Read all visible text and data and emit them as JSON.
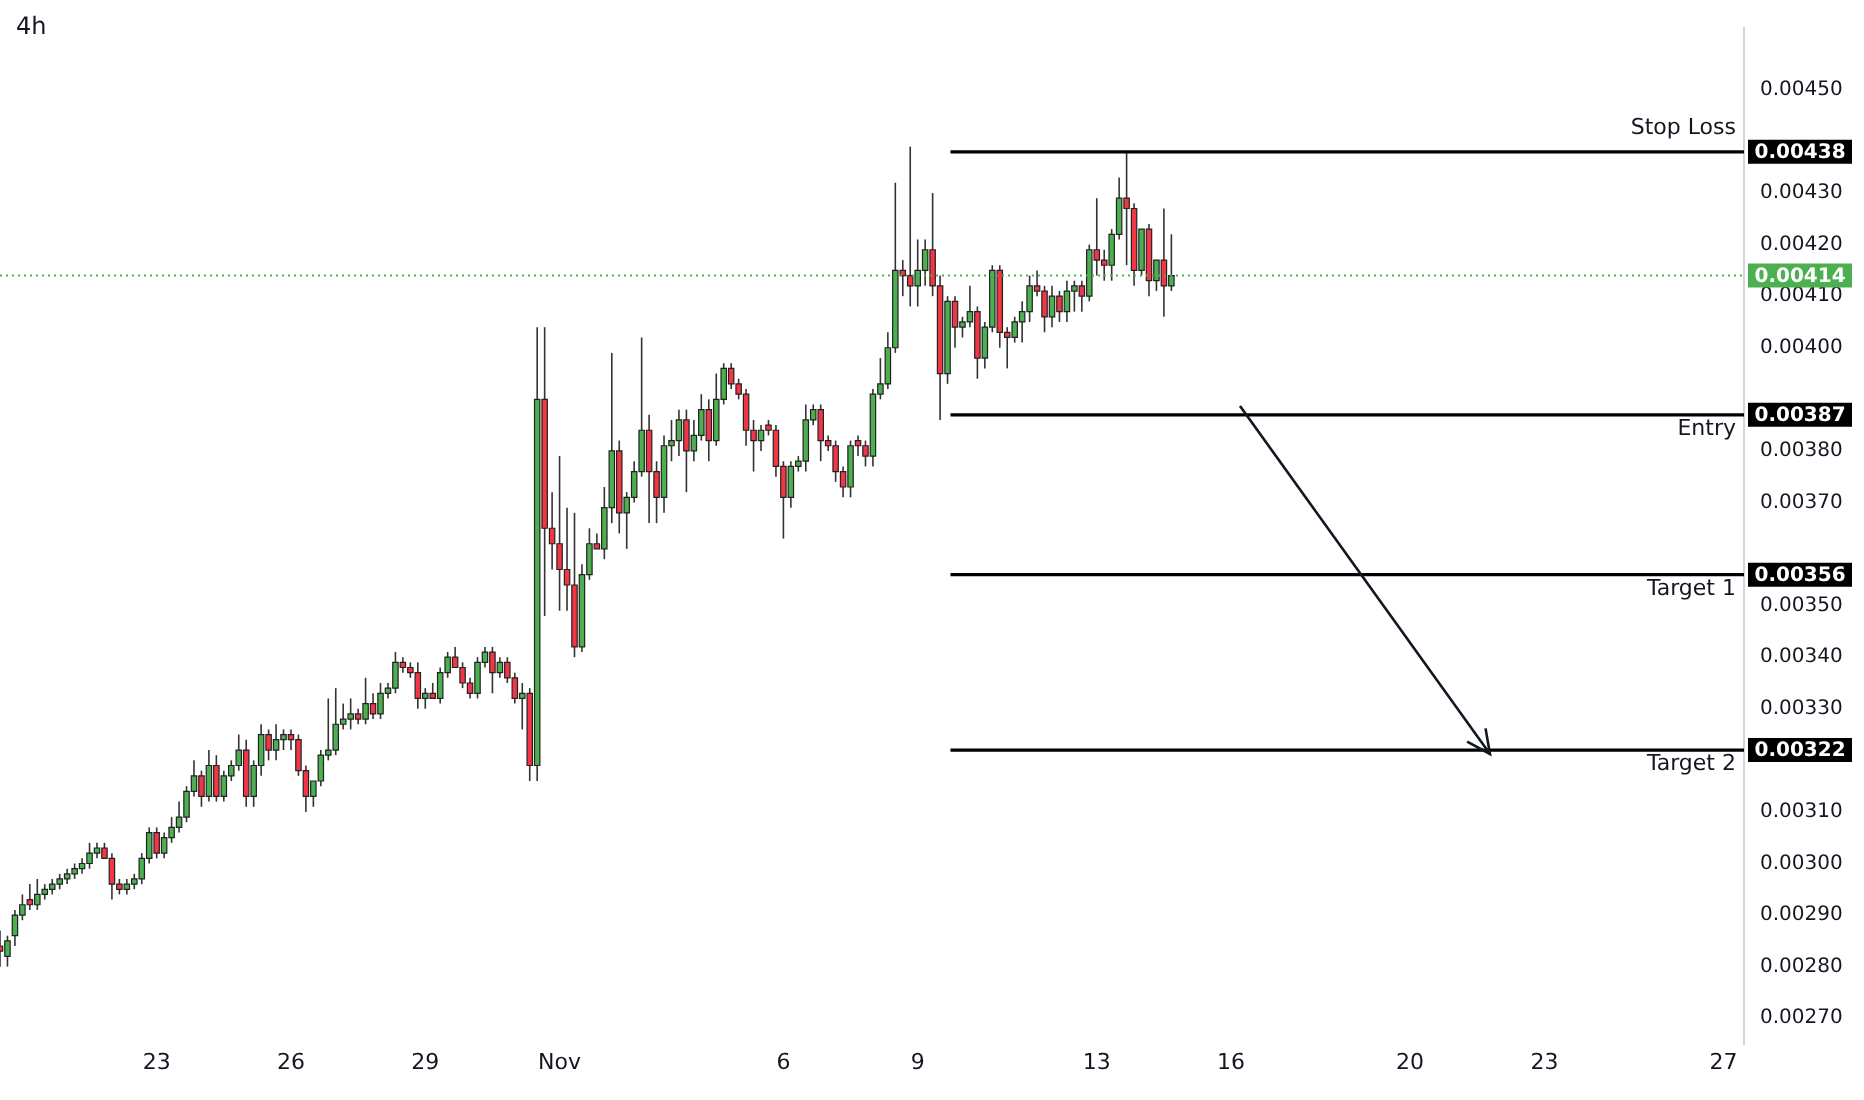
{
  "chart_data": {
    "type": "candlestick",
    "title": "4h",
    "x": [
      "--10-19T12:00",
      "--10-19T16:00",
      "--10-19T20:00",
      "--10-20T00:00",
      "--10-20T04:00",
      "--10-20T08:00",
      "--10-20T12:00",
      "--10-20T16:00",
      "--10-20T20:00",
      "--10-21T00:00",
      "--10-21T04:00",
      "--10-21T08:00",
      "--10-21T12:00",
      "--10-21T16:00",
      "--10-21T20:00",
      "--10-22T00:00",
      "--10-22T04:00",
      "--10-22T08:00",
      "--10-22T12:00",
      "--10-22T16:00",
      "--10-22T20:00",
      "--10-23T00:00",
      "--10-23T04:00",
      "--10-23T08:00",
      "--10-23T12:00",
      "--10-23T16:00",
      "--10-23T20:00",
      "--10-24T00:00",
      "--10-24T04:00",
      "--10-24T08:00",
      "--10-24T12:00",
      "--10-24T16:00",
      "--10-24T20:00",
      "--10-25T00:00",
      "--10-25T04:00",
      "--10-25T08:00",
      "--10-25T12:00",
      "--10-25T16:00",
      "--10-25T20:00",
      "--10-26T00:00",
      "--10-26T04:00",
      "--10-26T08:00",
      "--10-26T12:00",
      "--10-26T16:00",
      "--10-26T20:00",
      "--10-27T00:00",
      "--10-27T04:00",
      "--10-27T08:00",
      "--10-27T12:00",
      "--10-27T16:00",
      "--10-27T20:00",
      "--10-28T00:00",
      "--10-28T04:00",
      "--10-28T08:00",
      "--10-28T12:00",
      "--10-28T16:00",
      "--10-28T20:00",
      "--10-29T00:00",
      "--10-29T04:00",
      "--10-29T08:00",
      "--10-29T12:00",
      "--10-29T16:00",
      "--10-29T20:00",
      "--10-30T00:00",
      "--10-30T04:00",
      "--10-30T08:00",
      "--10-30T12:00",
      "--10-30T16:00",
      "--10-30T20:00",
      "--10-31T00:00",
      "--10-31T04:00",
      "--10-31T08:00",
      "--10-31T12:00",
      "--10-31T16:00",
      "--10-31T20:00",
      "--11-01T00:00",
      "--11-01T04:00",
      "--11-01T08:00",
      "--11-01T12:00",
      "--11-01T16:00",
      "--11-01T20:00",
      "--11-02T00:00",
      "--11-02T04:00",
      "--11-02T08:00",
      "--11-02T12:00",
      "--11-02T16:00",
      "--11-02T20:00",
      "--11-03T00:00",
      "--11-03T04:00",
      "--11-03T08:00",
      "--11-03T12:00",
      "--11-03T16:00",
      "--11-03T20:00",
      "--11-04T00:00",
      "--11-04T04:00",
      "--11-04T08:00",
      "--11-04T12:00",
      "--11-04T16:00",
      "--11-04T20:00",
      "--11-05T00:00",
      "--11-05T04:00",
      "--11-05T08:00",
      "--11-05T12:00",
      "--11-05T16:00",
      "--11-05T20:00",
      "--11-06T00:00",
      "--11-06T04:00",
      "--11-06T08:00",
      "--11-06T12:00",
      "--11-06T16:00",
      "--11-06T20:00",
      "--11-07T00:00",
      "--11-07T04:00",
      "--11-07T08:00",
      "--11-07T12:00",
      "--11-07T16:00",
      "--11-07T20:00",
      "--11-08T00:00",
      "--11-08T04:00",
      "--11-08T08:00",
      "--11-08T12:00",
      "--11-08T16:00",
      "--11-08T20:00",
      "--11-09T00:00",
      "--11-09T04:00",
      "--11-09T08:00",
      "--11-09T12:00",
      "--11-09T16:00",
      "--11-09T20:00",
      "--11-10T00:00",
      "--11-10T04:00",
      "--11-10T08:00",
      "--11-10T12:00",
      "--11-10T16:00",
      "--11-10T20:00",
      "--11-11T00:00",
      "--11-11T04:00",
      "--11-11T08:00",
      "--11-11T12:00",
      "--11-11T16:00",
      "--11-11T20:00",
      "--11-12T00:00",
      "--11-12T04:00",
      "--11-12T08:00",
      "--11-12T12:00",
      "--11-12T16:00",
      "--11-12T20:00",
      "--11-13T00:00",
      "--11-13T04:00",
      "--11-13T08:00",
      "--11-13T12:00",
      "--11-13T16:00",
      "--11-13T20:00",
      "--11-14T00:00",
      "--11-14T04:00",
      "--11-14T08:00",
      "--11-14T12:00",
      "--11-14T16:00"
    ],
    "ohlc": [
      [
        0.00284,
        0.00287,
        0.0028,
        0.00283
      ],
      [
        0.00282,
        0.00286,
        0.0028,
        0.00285
      ],
      [
        0.00286,
        0.00291,
        0.00284,
        0.0029
      ],
      [
        0.0029,
        0.00294,
        0.00289,
        0.00292
      ],
      [
        0.00293,
        0.00296,
        0.00291,
        0.00292
      ],
      [
        0.00292,
        0.00297,
        0.00291,
        0.00294
      ],
      [
        0.00294,
        0.00296,
        0.00293,
        0.00295
      ],
      [
        0.00295,
        0.00297,
        0.00294,
        0.00296
      ],
      [
        0.00296,
        0.00298,
        0.00295,
        0.00297
      ],
      [
        0.00297,
        0.00299,
        0.00296,
        0.00298
      ],
      [
        0.00298,
        0.003,
        0.00297,
        0.00299
      ],
      [
        0.00299,
        0.00301,
        0.00298,
        0.003
      ],
      [
        0.003,
        0.00304,
        0.00299,
        0.00302
      ],
      [
        0.00302,
        0.00304,
        0.00301,
        0.00303
      ],
      [
        0.00303,
        0.00304,
        0.00301,
        0.00301
      ],
      [
        0.00301,
        0.00302,
        0.00293,
        0.00296
      ],
      [
        0.00296,
        0.00297,
        0.00294,
        0.00295
      ],
      [
        0.00295,
        0.00297,
        0.00294,
        0.00296
      ],
      [
        0.00296,
        0.00298,
        0.00295,
        0.00297
      ],
      [
        0.00297,
        0.00302,
        0.00296,
        0.00301
      ],
      [
        0.00301,
        0.00307,
        0.003,
        0.00306
      ],
      [
        0.00306,
        0.00307,
        0.00301,
        0.00302
      ],
      [
        0.00302,
        0.00306,
        0.00301,
        0.00305
      ],
      [
        0.00305,
        0.00309,
        0.00304,
        0.00307
      ],
      [
        0.00307,
        0.00312,
        0.00306,
        0.00309
      ],
      [
        0.00309,
        0.00315,
        0.00308,
        0.00314
      ],
      [
        0.00314,
        0.0032,
        0.00313,
        0.00317
      ],
      [
        0.00317,
        0.00318,
        0.00311,
        0.00313
      ],
      [
        0.00313,
        0.00322,
        0.00312,
        0.00319
      ],
      [
        0.00319,
        0.00321,
        0.00312,
        0.00313
      ],
      [
        0.00313,
        0.00318,
        0.00312,
        0.00317
      ],
      [
        0.00317,
        0.0032,
        0.00316,
        0.00319
      ],
      [
        0.00319,
        0.00325,
        0.00318,
        0.00322
      ],
      [
        0.00322,
        0.00324,
        0.00311,
        0.00313
      ],
      [
        0.00313,
        0.0032,
        0.00311,
        0.00319
      ],
      [
        0.00319,
        0.00327,
        0.00317,
        0.00325
      ],
      [
        0.00325,
        0.00326,
        0.0032,
        0.00322
      ],
      [
        0.00322,
        0.00327,
        0.0032,
        0.00324
      ],
      [
        0.00324,
        0.00326,
        0.00322,
        0.00325
      ],
      [
        0.00325,
        0.00326,
        0.00322,
        0.00324
      ],
      [
        0.00324,
        0.00325,
        0.00317,
        0.00318
      ],
      [
        0.00318,
        0.00319,
        0.0031,
        0.00313
      ],
      [
        0.00313,
        0.00316,
        0.00311,
        0.00316
      ],
      [
        0.00316,
        0.00322,
        0.00315,
        0.00321
      ],
      [
        0.00321,
        0.00332,
        0.0032,
        0.00322
      ],
      [
        0.00322,
        0.00334,
        0.00321,
        0.00327
      ],
      [
        0.00327,
        0.00331,
        0.00326,
        0.00328
      ],
      [
        0.00328,
        0.00332,
        0.00326,
        0.00329
      ],
      [
        0.00329,
        0.0033,
        0.00327,
        0.00328
      ],
      [
        0.00328,
        0.00336,
        0.00327,
        0.00331
      ],
      [
        0.00331,
        0.00333,
        0.00328,
        0.00329
      ],
      [
        0.00329,
        0.00335,
        0.00328,
        0.00333
      ],
      [
        0.00333,
        0.00335,
        0.00332,
        0.00334
      ],
      [
        0.00334,
        0.00341,
        0.00333,
        0.00339
      ],
      [
        0.00339,
        0.0034,
        0.00337,
        0.00338
      ],
      [
        0.00338,
        0.00339,
        0.00336,
        0.00337
      ],
      [
        0.00337,
        0.00339,
        0.0033,
        0.00332
      ],
      [
        0.00332,
        0.00334,
        0.0033,
        0.00333
      ],
      [
        0.00333,
        0.00335,
        0.00332,
        0.00332
      ],
      [
        0.00332,
        0.00338,
        0.00331,
        0.00337
      ],
      [
        0.00337,
        0.00341,
        0.00336,
        0.0034
      ],
      [
        0.0034,
        0.00342,
        0.00338,
        0.00338
      ],
      [
        0.00338,
        0.00339,
        0.00334,
        0.00335
      ],
      [
        0.00335,
        0.00336,
        0.00332,
        0.00333
      ],
      [
        0.00333,
        0.0034,
        0.00332,
        0.00339
      ],
      [
        0.00339,
        0.00342,
        0.00338,
        0.00341
      ],
      [
        0.00341,
        0.00342,
        0.00333,
        0.00337
      ],
      [
        0.00337,
        0.0034,
        0.00336,
        0.00339
      ],
      [
        0.00339,
        0.0034,
        0.00335,
        0.00336
      ],
      [
        0.00336,
        0.00337,
        0.00331,
        0.00332
      ],
      [
        0.00332,
        0.00335,
        0.00326,
        0.00333
      ],
      [
        0.00333,
        0.00334,
        0.00316,
        0.00319
      ],
      [
        0.00319,
        0.00404,
        0.00316,
        0.0039
      ],
      [
        0.0039,
        0.00404,
        0.00348,
        0.00365
      ],
      [
        0.00365,
        0.00372,
        0.00357,
        0.00362
      ],
      [
        0.00362,
        0.00379,
        0.00349,
        0.00357
      ],
      [
        0.00357,
        0.00369,
        0.00349,
        0.00354
      ],
      [
        0.00354,
        0.00368,
        0.0034,
        0.00342
      ],
      [
        0.00342,
        0.00358,
        0.00341,
        0.00356
      ],
      [
        0.00356,
        0.00365,
        0.00355,
        0.00362
      ],
      [
        0.00362,
        0.00364,
        0.00361,
        0.00361
      ],
      [
        0.00361,
        0.00373,
        0.00359,
        0.00369
      ],
      [
        0.00369,
        0.00399,
        0.00366,
        0.0038
      ],
      [
        0.0038,
        0.00382,
        0.00364,
        0.00368
      ],
      [
        0.00368,
        0.00372,
        0.00361,
        0.00371
      ],
      [
        0.00371,
        0.00378,
        0.0037,
        0.00376
      ],
      [
        0.00376,
        0.00402,
        0.00375,
        0.00384
      ],
      [
        0.00384,
        0.00387,
        0.00366,
        0.00376
      ],
      [
        0.00376,
        0.00378,
        0.00366,
        0.00371
      ],
      [
        0.00371,
        0.00383,
        0.00368,
        0.00381
      ],
      [
        0.00381,
        0.00386,
        0.00378,
        0.00382
      ],
      [
        0.00382,
        0.00388,
        0.00379,
        0.00386
      ],
      [
        0.00386,
        0.00388,
        0.00372,
        0.0038
      ],
      [
        0.0038,
        0.00386,
        0.00378,
        0.00383
      ],
      [
        0.00383,
        0.00391,
        0.00382,
        0.00388
      ],
      [
        0.00388,
        0.0039,
        0.00378,
        0.00382
      ],
      [
        0.00382,
        0.00395,
        0.00381,
        0.0039
      ],
      [
        0.0039,
        0.00397,
        0.00389,
        0.00396
      ],
      [
        0.00396,
        0.00397,
        0.00392,
        0.00393
      ],
      [
        0.00393,
        0.00394,
        0.0039,
        0.00391
      ],
      [
        0.00391,
        0.00392,
        0.00381,
        0.00384
      ],
      [
        0.00384,
        0.00386,
        0.00376,
        0.00382
      ],
      [
        0.00382,
        0.00385,
        0.0038,
        0.00384
      ],
      [
        0.00385,
        0.00386,
        0.00383,
        0.00384
      ],
      [
        0.00384,
        0.00385,
        0.00375,
        0.00377
      ],
      [
        0.00377,
        0.00378,
        0.00363,
        0.00371
      ],
      [
        0.00371,
        0.00378,
        0.00369,
        0.00377
      ],
      [
        0.00377,
        0.00379,
        0.00376,
        0.00378
      ],
      [
        0.00378,
        0.00389,
        0.00376,
        0.00386
      ],
      [
        0.00386,
        0.00389,
        0.00385,
        0.00388
      ],
      [
        0.00388,
        0.00389,
        0.00378,
        0.00382
      ],
      [
        0.00382,
        0.00383,
        0.0038,
        0.00381
      ],
      [
        0.00381,
        0.00382,
        0.00374,
        0.00376
      ],
      [
        0.00376,
        0.00377,
        0.00371,
        0.00373
      ],
      [
        0.00373,
        0.00382,
        0.00371,
        0.00381
      ],
      [
        0.00382,
        0.00383,
        0.00379,
        0.00381
      ],
      [
        0.00381,
        0.00382,
        0.00377,
        0.00379
      ],
      [
        0.00379,
        0.00392,
        0.00377,
        0.00391
      ],
      [
        0.00391,
        0.00398,
        0.0039,
        0.00393
      ],
      [
        0.00393,
        0.00403,
        0.00392,
        0.004
      ],
      [
        0.004,
        0.00432,
        0.00399,
        0.00415
      ],
      [
        0.00415,
        0.00417,
        0.0041,
        0.00414
      ],
      [
        0.00414,
        0.00439,
        0.00408,
        0.00412
      ],
      [
        0.00412,
        0.00421,
        0.00408,
        0.00415
      ],
      [
        0.00415,
        0.00421,
        0.00412,
        0.00419
      ],
      [
        0.00419,
        0.0043,
        0.0041,
        0.00412
      ],
      [
        0.00412,
        0.00414,
        0.00386,
        0.00395
      ],
      [
        0.00395,
        0.0041,
        0.00393,
        0.00409
      ],
      [
        0.00409,
        0.0041,
        0.004,
        0.00404
      ],
      [
        0.00404,
        0.00406,
        0.00402,
        0.00405
      ],
      [
        0.00405,
        0.00412,
        0.00404,
        0.00407
      ],
      [
        0.00407,
        0.00408,
        0.00394,
        0.00398
      ],
      [
        0.00398,
        0.00405,
        0.00396,
        0.00404
      ],
      [
        0.00404,
        0.00416,
        0.00403,
        0.00415
      ],
      [
        0.00415,
        0.00416,
        0.004,
        0.00403
      ],
      [
        0.00403,
        0.00404,
        0.00396,
        0.00402
      ],
      [
        0.00402,
        0.00406,
        0.00401,
        0.00405
      ],
      [
        0.00405,
        0.00409,
        0.00401,
        0.00407
      ],
      [
        0.00407,
        0.00414,
        0.00405,
        0.00412
      ],
      [
        0.00412,
        0.00415,
        0.0041,
        0.00411
      ],
      [
        0.00411,
        0.00412,
        0.00403,
        0.00406
      ],
      [
        0.00406,
        0.00412,
        0.00404,
        0.0041
      ],
      [
        0.0041,
        0.00411,
        0.00405,
        0.00407
      ],
      [
        0.00407,
        0.00413,
        0.00405,
        0.00411
      ],
      [
        0.00411,
        0.00413,
        0.00407,
        0.00412
      ],
      [
        0.00412,
        0.00413,
        0.00407,
        0.0041
      ],
      [
        0.0041,
        0.0042,
        0.00409,
        0.00419
      ],
      [
        0.00419,
        0.00429,
        0.00414,
        0.00417
      ],
      [
        0.00417,
        0.00419,
        0.00413,
        0.00416
      ],
      [
        0.00416,
        0.00423,
        0.00413,
        0.00422
      ],
      [
        0.00422,
        0.00433,
        0.00421,
        0.00429
      ],
      [
        0.00429,
        0.00438,
        0.00416,
        0.00427
      ],
      [
        0.00427,
        0.00428,
        0.00412,
        0.00415
      ],
      [
        0.00415,
        0.00423,
        0.00414,
        0.00423
      ],
      [
        0.00423,
        0.00424,
        0.0041,
        0.00413
      ],
      [
        0.00413,
        0.00417,
        0.00411,
        0.00417
      ],
      [
        0.00417,
        0.00427,
        0.00406,
        0.00412
      ],
      [
        0.00412,
        0.00422,
        0.00411,
        0.00414
      ]
    ],
    "colors": [
      "#f23645",
      "#4caf50",
      "#4caf50",
      "#4caf50",
      "#f23645",
      "#4caf50",
      "#4caf50",
      "#4caf50",
      "#4caf50",
      "#4caf50",
      "#4caf50",
      "#4caf50",
      "#4caf50",
      "#4caf50",
      "#f23645",
      "#f23645",
      "#f23645",
      "#4caf50",
      "#4caf50",
      "#4caf50",
      "#4caf50",
      "#f23645",
      "#4caf50",
      "#4caf50",
      "#4caf50",
      "#4caf50",
      "#4caf50",
      "#f23645",
      "#4caf50",
      "#f23645",
      "#4caf50",
      "#4caf50",
      "#4caf50",
      "#f23645",
      "#4caf50",
      "#4caf50",
      "#f23645",
      "#4caf50",
      "#4caf50",
      "#f23645",
      "#f23645",
      "#f23645",
      "#4caf50",
      "#4caf50",
      "#4caf50",
      "#4caf50",
      "#4caf50",
      "#4caf50",
      "#f23645",
      "#4caf50",
      "#f23645",
      "#4caf50",
      "#4caf50",
      "#4caf50",
      "#f23645",
      "#f23645",
      "#f23645",
      "#4caf50",
      "#f23645",
      "#4caf50",
      "#4caf50",
      "#f23645",
      "#f23645",
      "#f23645",
      "#4caf50",
      "#4caf50",
      "#f23645",
      "#4caf50",
      "#f23645",
      "#f23645",
      "#4caf50",
      "#f23645",
      "#4caf50",
      "#f23645",
      "#f23645",
      "#f23645",
      "#f23645",
      "#f23645",
      "#4caf50",
      "#4caf50",
      "#f23645",
      "#4caf50",
      "#4caf50",
      "#f23645",
      "#4caf50",
      "#4caf50",
      "#4caf50",
      "#f23645",
      "#f23645",
      "#4caf50",
      "#4caf50",
      "#4caf50",
      "#f23645",
      "#4caf50",
      "#4caf50",
      "#f23645",
      "#4caf50",
      "#4caf50",
      "#f23645",
      "#f23645",
      "#f23645",
      "#f23645",
      "#4caf50",
      "#f23645",
      "#f23645",
      "#f23645",
      "#4caf50",
      "#4caf50",
      "#4caf50",
      "#4caf50",
      "#f23645",
      "#f23645",
      "#f23645",
      "#f23645",
      "#4caf50",
      "#f23645",
      "#f23645",
      "#4caf50",
      "#4caf50",
      "#4caf50",
      "#4caf50",
      "#f23645",
      "#f23645",
      "#4caf50",
      "#4caf50",
      "#f23645",
      "#f23645",
      "#4caf50",
      "#f23645",
      "#4caf50",
      "#4caf50",
      "#f23645",
      "#4caf50",
      "#4caf50",
      "#f23645",
      "#f23645",
      "#4caf50",
      "#4caf50",
      "#4caf50",
      "#f23645",
      "#f23645",
      "#4caf50",
      "#f23645",
      "#4caf50",
      "#4caf50",
      "#f23645",
      "#4caf50",
      "#f23645",
      "#f23645",
      "#4caf50",
      "#4caf50",
      "#f23645",
      "#f23645",
      "#4caf50",
      "#f23645",
      "#4caf50",
      "#f23645",
      "#4caf50"
    ],
    "xlim": [
      "--10-19T12:00",
      "--11-27T11:00"
    ],
    "xticks": [
      {
        "value": "--10-23",
        "label": "23"
      },
      {
        "value": "--10-26",
        "label": "26"
      },
      {
        "value": "--10-29",
        "label": "29"
      },
      {
        "value": "--11-01",
        "label": "Nov"
      },
      {
        "value": "--11-06",
        "label": "6"
      },
      {
        "value": "--11-09",
        "label": "9"
      },
      {
        "value": "--11-13",
        "label": "13"
      },
      {
        "value": "--11-16",
        "label": "16"
      },
      {
        "value": "--11-20",
        "label": "20"
      },
      {
        "value": "--11-23",
        "label": "23"
      },
      {
        "value": "--11-27",
        "label": "27"
      }
    ],
    "ylim": [
      0.00265,
      0.00462
    ],
    "yticks": [
      {
        "value": 0.0027,
        "label": "0.00270"
      },
      {
        "value": 0.0028,
        "label": "0.00280"
      },
      {
        "value": 0.0029,
        "label": "0.00290"
      },
      {
        "value": 0.003,
        "label": "0.00300"
      },
      {
        "value": 0.0031,
        "label": "0.00310"
      },
      {
        "value": 0.0033,
        "label": "0.00330"
      },
      {
        "value": 0.0034,
        "label": "0.00340"
      },
      {
        "value": 0.0035,
        "label": "0.00350"
      },
      {
        "value": 0.0037,
        "label": "0.00370"
      },
      {
        "value": 0.0038,
        "label": "0.00380"
      },
      {
        "value": 0.004,
        "label": "0.00400"
      },
      {
        "value": 0.0041,
        "label": "0.00410"
      },
      {
        "value": 0.0042,
        "label": "0.00420"
      },
      {
        "value": 0.0043,
        "label": "0.00430"
      },
      {
        "value": 0.0045,
        "label": "0.00450"
      }
    ],
    "annotations": [
      "0.00438",
      "0.00414",
      "0.00387",
      "0.00356",
      "0.00322"
    ],
    "ref_lines": [
      {
        "axis": "y",
        "value": 0.00438,
        "label": "Stop Loss",
        "color": "#000000"
      },
      {
        "axis": "y",
        "value": 0.00414,
        "color": "#4caf50",
        "line_style": "dotted"
      },
      {
        "axis": "y",
        "value": 0.00387,
        "label": "Entry",
        "color": "#000000"
      },
      {
        "axis": "y",
        "value": 0.00356,
        "label": "Target 1",
        "color": "#000000"
      },
      {
        "axis": "y",
        "value": 0.00322,
        "label": "Target 2",
        "color": "#000000"
      }
    ]
  }
}
